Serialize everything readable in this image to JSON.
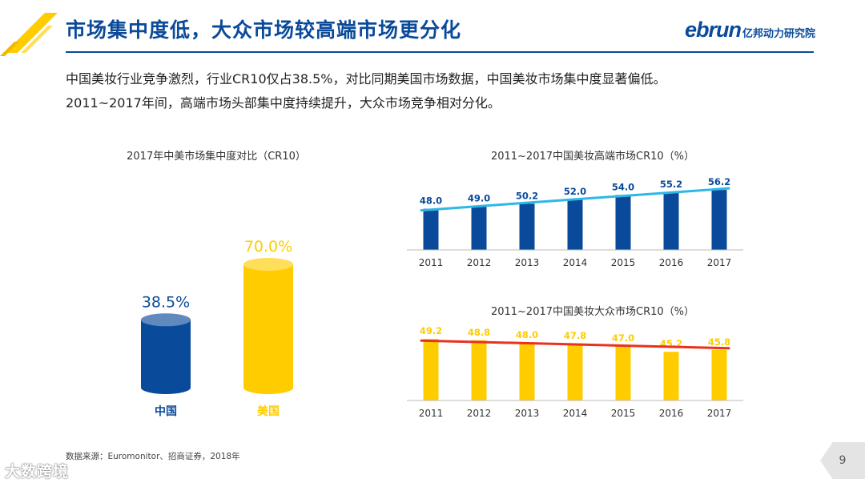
{
  "header": {
    "title": "市场集中度低，大众市场较高端市场更分化",
    "brand_main": "ebrun",
    "brand_sub": "亿邦动力研究院"
  },
  "intro": {
    "line1": "中国美妆行业竞争激烈，行业CR10仅占38.5%，对比同期美国市场数据，中国美妆市场集中度显著偏低。",
    "line2": "2011~2017年间，高端市场头部集中度持续提升，大众市场竞争相对分化。"
  },
  "colors": {
    "navy": "#0a4a9a",
    "yellow": "#ffcc00",
    "trend_blue": "#2eb8e6",
    "trend_red": "#e8321e"
  },
  "chart_data": [
    {
      "type": "bar",
      "title": "2017年中美市场集中度对比（CR10）",
      "categories": [
        "中国",
        "美国"
      ],
      "values": [
        38.5,
        70.0
      ],
      "value_labels": [
        "38.5%",
        "70.0%"
      ],
      "ylim": [
        0,
        80
      ]
    },
    {
      "type": "bar",
      "title": "2011~2017中国美妆高端市场CR10（%）",
      "categories": [
        "2011",
        "2012",
        "2013",
        "2014",
        "2015",
        "2016",
        "2017"
      ],
      "values": [
        48.0,
        49.0,
        50.2,
        52.0,
        54.0,
        55.2,
        56.2
      ],
      "value_labels": [
        "48.0",
        "49.0",
        "50.2",
        "52.0",
        "54.0",
        "55.2",
        "56.2"
      ],
      "trend": "increasing",
      "ylim": [
        30,
        58
      ]
    },
    {
      "type": "bar",
      "title": "2011~2017中国美妆大众市场CR10（%）",
      "categories": [
        "2011",
        "2012",
        "2013",
        "2014",
        "2015",
        "2016",
        "2017"
      ],
      "values": [
        49.2,
        48.8,
        48.0,
        47.8,
        47.0,
        45.2,
        45.8
      ],
      "value_labels": [
        "49.2",
        "48.8",
        "48.0",
        "47.8",
        "47.0",
        "45.2",
        "45.8"
      ],
      "trend": "decreasing",
      "ylim": [
        30,
        50
      ]
    }
  ],
  "footer": {
    "source": "数据来源：Euromonitor、招商证券，2018年",
    "watermark": "大数跨境",
    "page_number": "9"
  }
}
